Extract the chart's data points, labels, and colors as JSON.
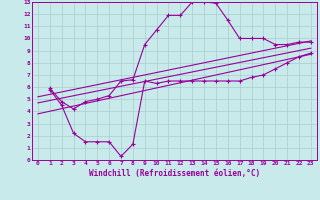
{
  "background_color": "#c8eaea",
  "grid_color": "#aacccc",
  "line_color": "#990099",
  "xlabel": "Windchill (Refroidissement éolien,°C)",
  "xlim": [
    -0.5,
    23.5
  ],
  "ylim": [
    0,
    13
  ],
  "xticks": [
    0,
    1,
    2,
    3,
    4,
    5,
    6,
    7,
    8,
    9,
    10,
    11,
    12,
    13,
    14,
    15,
    16,
    17,
    18,
    19,
    20,
    21,
    22,
    23
  ],
  "yticks": [
    0,
    1,
    2,
    3,
    4,
    5,
    6,
    7,
    8,
    9,
    10,
    11,
    12,
    13
  ],
  "curve1_x": [
    1,
    2,
    3,
    4,
    5,
    6,
    7,
    8,
    9,
    10,
    11,
    12,
    13,
    14,
    15,
    16,
    17,
    18,
    19,
    20,
    21,
    22,
    23
  ],
  "curve1_y": [
    5.9,
    4.8,
    4.2,
    4.8,
    5.0,
    5.3,
    6.5,
    6.6,
    9.5,
    10.7,
    11.9,
    11.9,
    13.0,
    13.0,
    12.9,
    11.5,
    10.0,
    10.0,
    10.0,
    9.5,
    9.5,
    9.7,
    9.7
  ],
  "curve2_x": [
    1,
    2,
    3,
    4,
    5,
    6,
    7,
    8,
    9,
    10,
    11,
    12,
    13,
    14,
    15,
    16,
    17,
    18,
    19,
    20,
    21,
    22,
    23
  ],
  "curve2_y": [
    5.8,
    4.5,
    2.2,
    1.5,
    1.5,
    1.5,
    0.3,
    1.3,
    6.5,
    6.3,
    6.5,
    6.5,
    6.5,
    6.5,
    6.5,
    6.5,
    6.5,
    6.8,
    7.0,
    7.5,
    8.0,
    8.5,
    8.8
  ],
  "line1_x": [
    0,
    23
  ],
  "line1_y": [
    5.2,
    9.8
  ],
  "line2_x": [
    0,
    23
  ],
  "line2_y": [
    4.7,
    9.2
  ],
  "line3_x": [
    0,
    23
  ],
  "line3_y": [
    3.8,
    8.7
  ]
}
